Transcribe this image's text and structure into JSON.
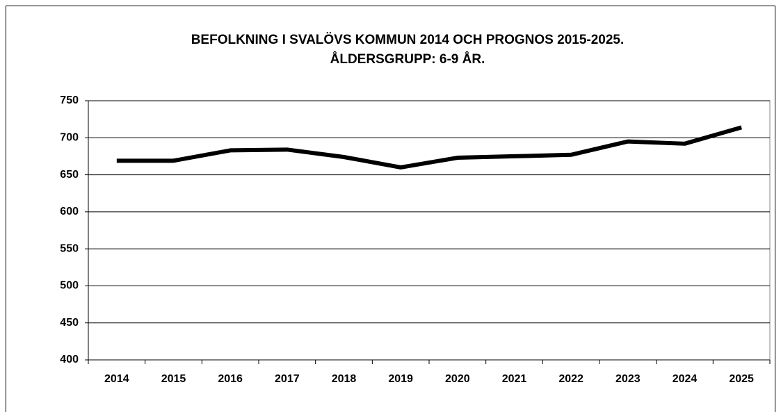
{
  "chart_data": {
    "type": "line",
    "title": [
      "BEFOLKNING I SVALÖVS KOMMUN 2014 OCH PROGNOS 2015-2025.",
      "ÅLDERSGRUPP: 6-9 ÅR."
    ],
    "categories": [
      "2014",
      "2015",
      "2016",
      "2017",
      "2018",
      "2019",
      "2020",
      "2021",
      "2022",
      "2023",
      "2024",
      "2025"
    ],
    "values": [
      669,
      669,
      683,
      684,
      674,
      660,
      673,
      675,
      677,
      695,
      692,
      714
    ],
    "color": "#000000",
    "ylim": [
      400,
      750
    ],
    "yticks": [
      400,
      450,
      500,
      550,
      600,
      650,
      700,
      750
    ],
    "grid": true
  }
}
